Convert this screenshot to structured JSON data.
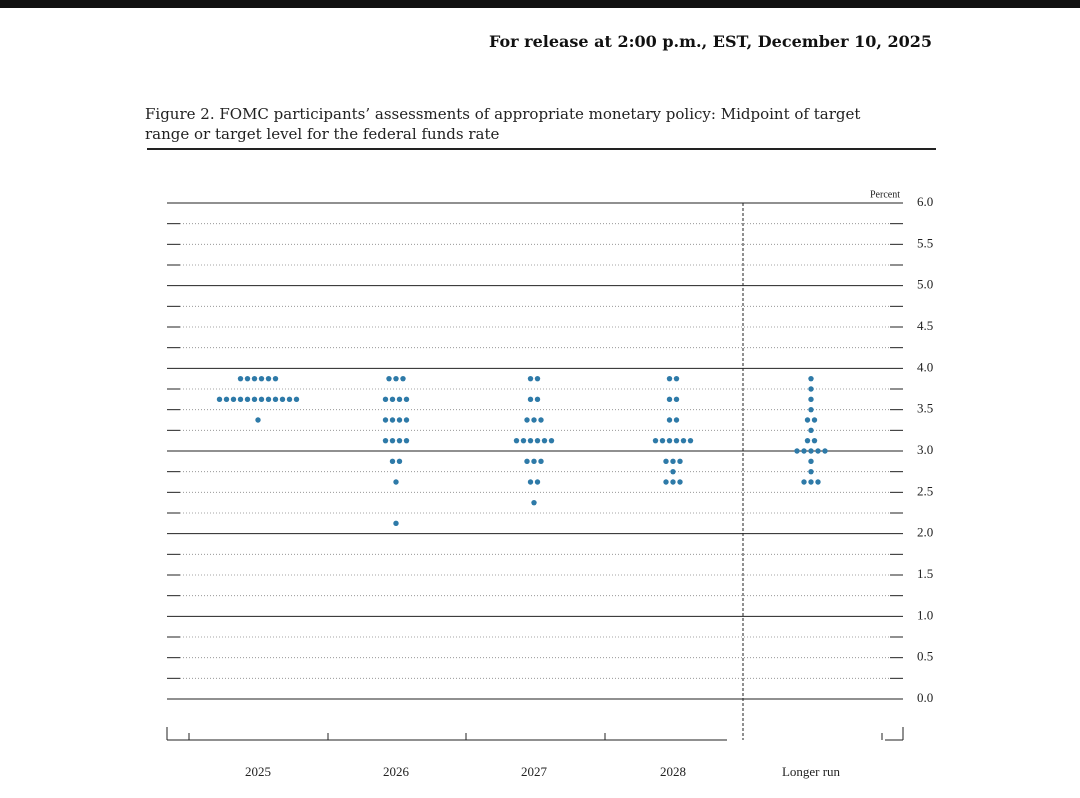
{
  "header": "For release at 2:00 p.m., EST, December 10, 2025",
  "caption": "Figure 2. FOMC participants’ assessments of appropriate monetary policy: Midpoint of target range or target level for the federal funds rate",
  "chart_data": {
    "type": "dot",
    "unit_label": "Percent",
    "categories": [
      "2025",
      "2026",
      "2027",
      "2028",
      "Longer run"
    ],
    "color": "#2e7aa8",
    "values": [
      [
        3.875,
        3.875,
        3.875,
        3.875,
        3.875,
        3.875,
        3.625,
        3.625,
        3.625,
        3.625,
        3.625,
        3.625,
        3.625,
        3.625,
        3.625,
        3.625,
        3.625,
        3.625,
        3.375
      ],
      [
        3.875,
        3.875,
        3.875,
        3.625,
        3.625,
        3.625,
        3.625,
        3.375,
        3.375,
        3.375,
        3.375,
        3.125,
        3.125,
        3.125,
        3.125,
        2.875,
        2.875,
        2.625,
        2.125
      ],
      [
        3.875,
        3.875,
        3.625,
        3.625,
        3.375,
        3.375,
        3.375,
        3.125,
        3.125,
        3.125,
        3.125,
        3.125,
        3.125,
        2.875,
        2.875,
        2.875,
        2.625,
        2.625,
        2.375
      ],
      [
        3.875,
        3.875,
        3.625,
        3.625,
        3.375,
        3.375,
        3.125,
        3.125,
        3.125,
        3.125,
        3.125,
        3.125,
        2.875,
        2.875,
        2.875,
        2.75,
        2.625,
        2.625,
        2.625
      ],
      [
        3.875,
        3.75,
        3.625,
        3.5,
        3.375,
        3.375,
        3.25,
        3.125,
        3.125,
        3,
        3,
        3,
        3,
        3,
        2.875,
        2.75,
        2.625,
        2.625,
        2.625
      ]
    ],
    "ylim": [
      0,
      6
    ],
    "yticks": [
      {
        "value": 0,
        "label": "0.0"
      },
      0.5,
      {
        "value": 1,
        "label": "1.0"
      },
      1.5,
      {
        "value": 2,
        "label": "2.0"
      },
      2.5,
      {
        "value": 3,
        "label": "3.0"
      },
      3.5,
      {
        "value": 4,
        "label": "4.0"
      },
      4.5,
      {
        "value": 5,
        "label": "5.0"
      },
      5.5,
      {
        "value": 6,
        "label": "6.0"
      }
    ],
    "yminor": [
      0.25,
      0.75,
      1.25,
      1.75,
      2.25,
      2.75,
      3.25,
      3.75,
      4.25,
      4.75,
      5.25,
      5.75
    ],
    "grid": true
  }
}
